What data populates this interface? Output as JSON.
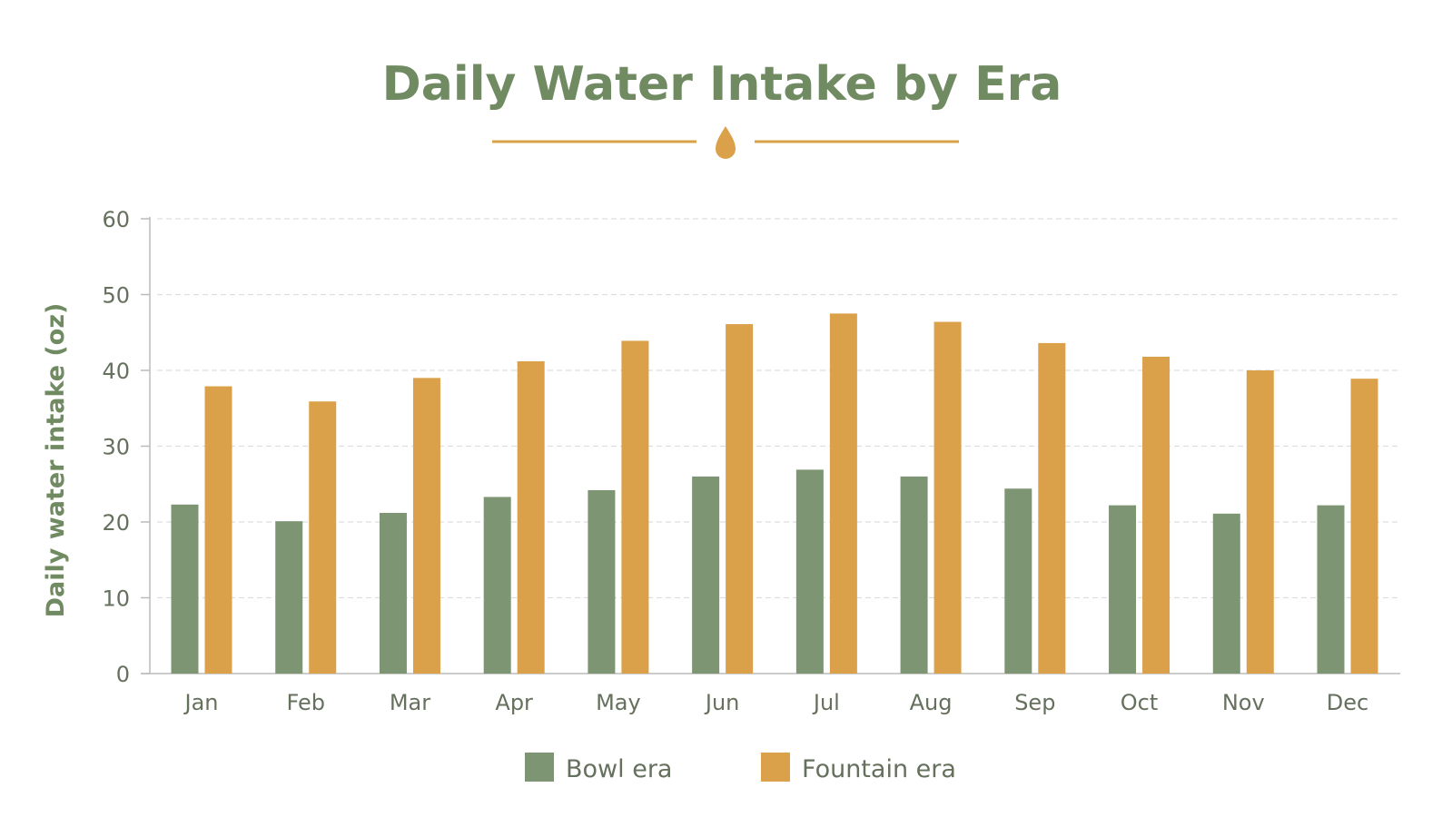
{
  "colors": {
    "bowl": "#7d9572",
    "fountain": "#dba04a",
    "title": "#708a62",
    "ornament": "#dba04a",
    "grid": "#dddddd",
    "axis": "#bbbbbb",
    "text": "#65705d"
  },
  "ornament_icon": "water-drop-icon",
  "chart_data": {
    "type": "bar",
    "title": "Daily Water Intake by Era",
    "xlabel": "",
    "ylabel": "Daily water intake (oz)",
    "ylim": [
      0,
      60
    ],
    "yticks": [
      "0",
      "10",
      "20",
      "30",
      "40",
      "50",
      "60"
    ],
    "grid": true,
    "legend_position": "bottom",
    "categories": [
      "Jan",
      "Feb",
      "Mar",
      "Apr",
      "May",
      "Jun",
      "Jul",
      "Aug",
      "Sep",
      "Oct",
      "Nov",
      "Dec"
    ],
    "series": [
      {
        "name": "Bowl era",
        "values": [
          22.3,
          20.1,
          21.2,
          23.3,
          24.2,
          26.0,
          26.9,
          26.0,
          24.4,
          22.2,
          21.1,
          22.2
        ]
      },
      {
        "name": "Fountain era",
        "values": [
          37.9,
          35.9,
          39.0,
          41.2,
          43.9,
          46.1,
          47.5,
          46.4,
          43.6,
          41.8,
          40.0,
          38.9
        ]
      }
    ]
  }
}
